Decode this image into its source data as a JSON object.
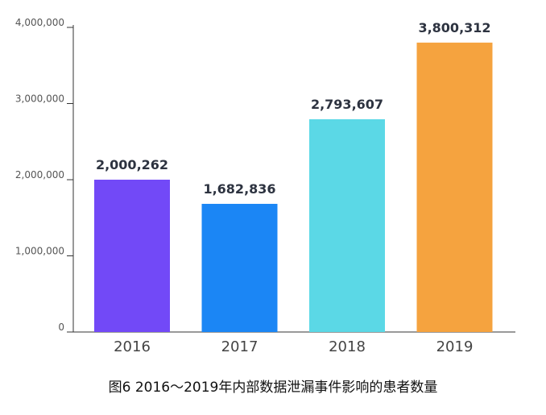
{
  "chart_data": {
    "type": "bar",
    "categories": [
      "2016",
      "2017",
      "2018",
      "2019"
    ],
    "values": [
      2000262,
      1682836,
      2793607,
      3800312
    ],
    "value_labels": [
      "2,000,262",
      "1,682,836",
      "2,793,607",
      "3,800,312"
    ],
    "colors": [
      "#7249f7",
      "#1b86f5",
      "#5bd8e6",
      "#f5a33f"
    ],
    "ylim": [
      0,
      4000000
    ],
    "yticks": [
      0,
      1000000,
      2000000,
      3000000,
      4000000
    ],
    "ytick_labels": [
      "0",
      "1,000,000",
      "2,000,000",
      "3,000,000",
      "4,000,000"
    ],
    "grid": false,
    "title": "图6 2016～2019年内部数据泄漏事件影响的患者数量",
    "xlabel": "",
    "ylabel": ""
  }
}
